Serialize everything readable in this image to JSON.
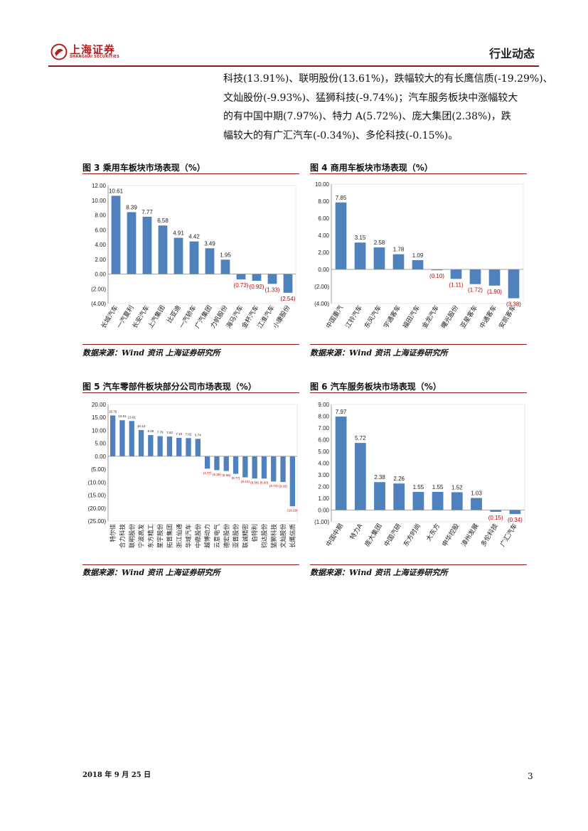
{
  "header": {
    "logo_text": "上海证券",
    "logo_subtext": "SHANGHAI SECURITIES",
    "section": "行业动态"
  },
  "paragraph": {
    "lines": [
      "科技(13.91%)、联明股份(13.61%)，跌幅较大的有长鹰信质(-19.29%)、",
      "文灿股份(-9.93%)、猛狮科技(-9.74%)；汽车服务板块中涨幅较大",
      "的有中国中期(7.97%)、特力 A(5.72%)、庞大集团(2.38%)，跌",
      "幅较大的有广汇汽车(-0.34%)、多伦科技(-0.15%)。"
    ]
  },
  "figures": {
    "fig3": {
      "title": "图 3 乘用车板块市场表现（%）",
      "source": "数据来源：Wind 资讯 上海证券研究所"
    },
    "fig4": {
      "title": "图 4 商用车板块市场表现（%）",
      "source": "数据来源：Wind 资讯 上海证券研究所"
    },
    "fig5": {
      "title": "图 5 汽车零部件板块部分公司市场表现（%）",
      "source": "数据来源：Wind 资讯 上海证券研究所"
    },
    "fig6": {
      "title": "图 6 汽车服务板块市场表现（%）",
      "source": "数据来源：Wind 资讯 上海证券研究所"
    }
  },
  "colors": {
    "bar": "#4f81bd",
    "negative_label": "#c00000",
    "rule": "#8b1a1a",
    "logo": "#b71c1c"
  },
  "chart_data": [
    {
      "id": "fig3",
      "type": "bar",
      "title": "图 3 乘用车板块市场表现（%）",
      "categories": [
        "长城汽车",
        "一汽夏利",
        "长安汽车",
        "上汽集团",
        "比亚迪",
        "一汽轿车",
        "广汽集团",
        "力帆股份",
        "海马汽车",
        "金杯汽车",
        "江淮汽车",
        "小康股份"
      ],
      "values": [
        10.61,
        8.39,
        7.77,
        6.58,
        4.91,
        4.42,
        3.49,
        1.95,
        -0.73,
        -0.92,
        -1.33,
        -2.54
      ],
      "labels": [
        "10.61",
        "8.39",
        "7.77",
        "6.58",
        "4.91",
        "4.42",
        "3.49",
        "1.95",
        "(0.73)",
        "(0.92)",
        "(1.33)",
        "(2.54)"
      ],
      "ylim": [
        -4,
        12
      ],
      "ytick_labels": [
        "12.00",
        "10.00",
        "8.00",
        "6.00",
        "4.00",
        "2.00",
        "0.00",
        "(2.00)",
        "(4.00)"
      ],
      "xlabel": "",
      "ylabel": ""
    },
    {
      "id": "fig4",
      "type": "bar",
      "title": "图 4 商用车板块市场表现（%）",
      "categories": [
        "中国重汽",
        "江铃汽车",
        "东风汽车",
        "宇通客车",
        "福田汽车",
        "金龙汽车",
        "曙光股份",
        "亚星客车",
        "中通客车",
        "安凯客车"
      ],
      "values": [
        7.85,
        3.15,
        2.58,
        1.78,
        1.09,
        -0.1,
        -1.11,
        -1.72,
        -1.9,
        -3.38
      ],
      "labels": [
        "7.85",
        "3.15",
        "2.58",
        "1.78",
        "1.09",
        "(0.10)",
        "(1.11)",
        "(1.72)",
        "(1.90)",
        "(3.38)"
      ],
      "ylim": [
        -4,
        10
      ],
      "ytick_labels": [
        "10.00",
        "8.00",
        "6.00",
        "4.00",
        "2.00",
        "0.00",
        "(2.00)",
        "(4.00)"
      ],
      "xlabel": "",
      "ylabel": ""
    },
    {
      "id": "fig5",
      "type": "bar",
      "title": "图 5 汽车零部件板块部分公司市场表现（%）",
      "categories": [
        "特尔佳",
        "合力科技",
        "联明股份",
        "宁波高发",
        "东方精工",
        "星宇股份",
        "拓普集团",
        "浙江仙通",
        "华域汽车",
        "中鼎股份",
        "越博动力",
        "云意电气",
        "德宏股份",
        "亚普股份",
        "联诚精密",
        "伯特利",
        "钧达股份",
        "猛狮科技",
        "文灿股份",
        "长鹰信质"
      ],
      "values": [
        15.76,
        13.91,
        13.61,
        10.13,
        8.2,
        7.79,
        7.62,
        7.1,
        7.02,
        6.74,
        -4.77,
        -5.35,
        -5.68,
        -6.77,
        -8.12,
        -8.58,
        -8.6,
        -9.74,
        -9.93,
        -19.29
      ],
      "labels": [
        "15.76",
        "13.91",
        "13.61",
        "10.13",
        "8.20",
        "7.79",
        "7.62",
        "7.10",
        "7.02",
        "6.74",
        "(4.77)",
        "(5.35)",
        "(5.68)",
        "(6.77)",
        "(8.12)",
        "(8.58)",
        "(8.60)",
        "(9.74)",
        "(9.93)",
        "(19.29)"
      ],
      "ylim": [
        -25,
        20
      ],
      "ytick_labels": [
        "20.00",
        "15.00",
        "10.00",
        "5.00",
        "0.00",
        "(5.00)",
        "(10.00)",
        "(15.00)",
        "(20.00)",
        "(25.00)"
      ],
      "xlabel": "",
      "ylabel": ""
    },
    {
      "id": "fig6",
      "type": "bar",
      "title": "图 6 汽车服务板块市场表现（%）",
      "categories": [
        "中国中期",
        "特力A",
        "庞大集团",
        "中国汽研",
        "东方时尚",
        "大东方",
        "申华控股",
        "漳州发展",
        "多伦科技",
        "广汇汽车"
      ],
      "values": [
        7.97,
        5.72,
        2.38,
        2.26,
        1.55,
        1.55,
        1.52,
        1.03,
        -0.15,
        -0.34
      ],
      "labels": [
        "7.97",
        "5.72",
        "2.38",
        "2.26",
        "1.55",
        "1.55",
        "1.52",
        "1.03",
        "(0.15)",
        "(0.34)"
      ],
      "ylim": [
        -1,
        9
      ],
      "ytick_labels": [
        "9.00",
        "8.00",
        "7.00",
        "6.00",
        "5.00",
        "4.00",
        "3.00",
        "2.00",
        "1.00",
        "0.00",
        "(1.00)"
      ],
      "xlabel": "",
      "ylabel": ""
    }
  ],
  "footer": {
    "date": "2018 年 9 月 25 日",
    "page": "3"
  }
}
